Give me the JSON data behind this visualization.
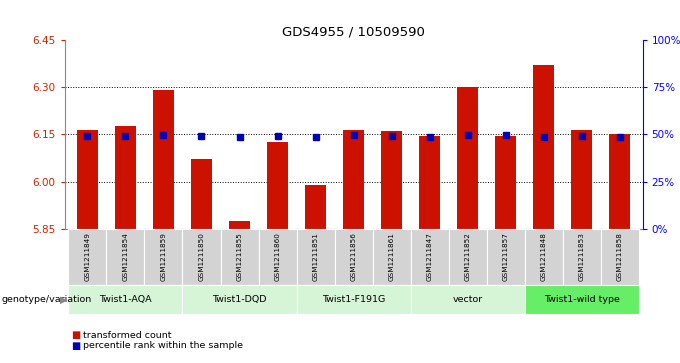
{
  "title": "GDS4955 / 10509590",
  "samples": [
    "GSM1211849",
    "GSM1211854",
    "GSM1211859",
    "GSM1211850",
    "GSM1211855",
    "GSM1211860",
    "GSM1211851",
    "GSM1211856",
    "GSM1211861",
    "GSM1211847",
    "GSM1211852",
    "GSM1211857",
    "GSM1211848",
    "GSM1211853",
    "GSM1211858"
  ],
  "bar_values": [
    6.165,
    6.175,
    6.29,
    6.07,
    5.875,
    6.125,
    5.99,
    6.165,
    6.16,
    6.145,
    6.3,
    6.145,
    6.37,
    6.165,
    6.15
  ],
  "blue_values": [
    6.145,
    6.145,
    6.148,
    6.145,
    6.141,
    6.145,
    6.143,
    6.147,
    6.145,
    6.141,
    6.148,
    6.147,
    6.143,
    6.145,
    6.142
  ],
  "ylim_left": [
    5.85,
    6.45
  ],
  "ylim_right": [
    0,
    100
  ],
  "yticks_left": [
    5.85,
    6.0,
    6.15,
    6.3,
    6.45
  ],
  "yticks_right": [
    0,
    25,
    50,
    75,
    100
  ],
  "ytick_labels_right": [
    "0%",
    "25%",
    "50%",
    "75%",
    "100%"
  ],
  "bar_color": "#cc1100",
  "blue_color": "#0000bb",
  "bar_bottom": 5.85,
  "genotype_groups": [
    {
      "label": "Twist1-AQA",
      "start": 0,
      "end": 3,
      "color": "#d6f5d6"
    },
    {
      "label": "Twist1-DQD",
      "start": 3,
      "end": 6,
      "color": "#d6f5d6"
    },
    {
      "label": "Twist1-F191G",
      "start": 6,
      "end": 9,
      "color": "#d6f5d6"
    },
    {
      "label": "vector",
      "start": 9,
      "end": 12,
      "color": "#d6f5d6"
    },
    {
      "label": "Twist1-wild type",
      "start": 12,
      "end": 15,
      "color": "#66ee66"
    }
  ],
  "legend_red_label": "transformed count",
  "legend_blue_label": "percentile rank within the sample",
  "genotype_label": "genotype/variation",
  "sample_box_color": "#d3d3d3",
  "grid_yticks": [
    6.0,
    6.15,
    6.3
  ]
}
